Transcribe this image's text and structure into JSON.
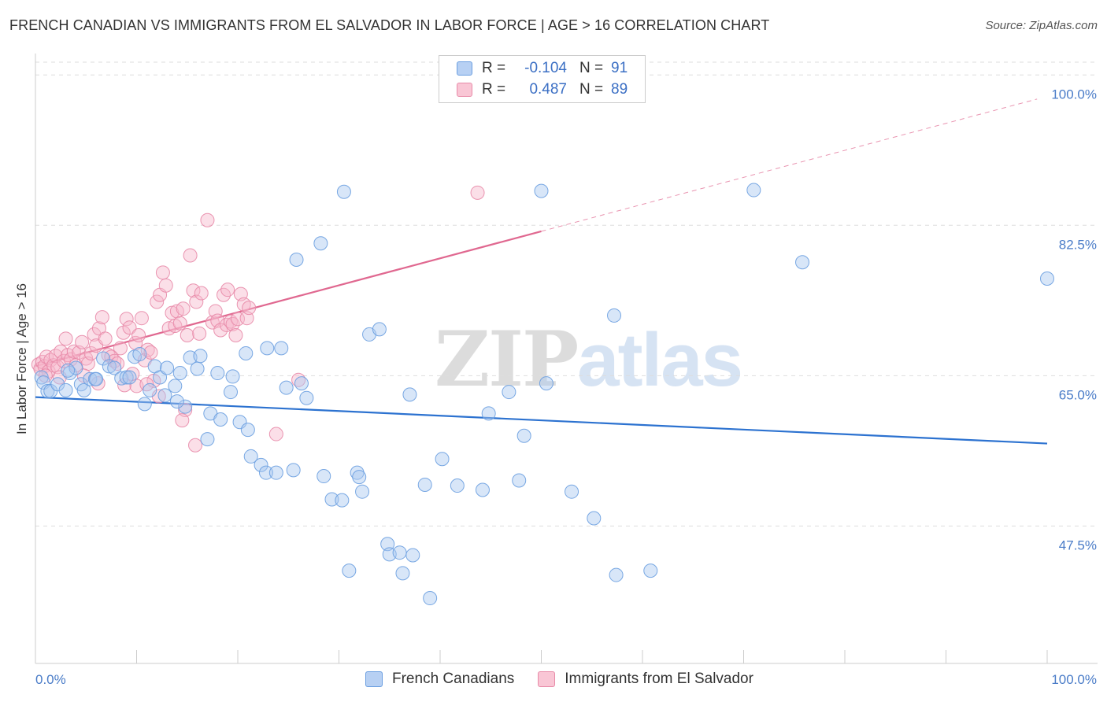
{
  "header": {
    "title": "FRENCH CANADIAN VS IMMIGRANTS FROM EL SALVADOR IN LABOR FORCE | AGE > 16 CORRELATION CHART",
    "source": "Source: ZipAtlas.com"
  },
  "watermark": {
    "zip": "ZIP",
    "atlas": "atlas"
  },
  "legend": {
    "rows": [
      {
        "r_label": "R =",
        "r_value": "-0.104",
        "n_label": "N =",
        "n_value": "91"
      },
      {
        "r_label": "R =",
        "r_value": "0.487",
        "n_label": "N =",
        "n_value": "89"
      }
    ]
  },
  "bottom_legend": {
    "series_a": "French Canadians",
    "series_b": "Immigrants from El Salvador"
  },
  "colors": {
    "blue_fill": "#a8c8f0",
    "blue_stroke": "#6a9ee0",
    "blue_line": "#2c72d0",
    "pink_fill": "#f7b9cc",
    "pink_stroke": "#e88aa8",
    "pink_line": "#e06890",
    "grid": "#dddddd",
    "axis_text": "#4a7cc8"
  },
  "chart_data": {
    "type": "scatter",
    "title": "FRENCH CANADIAN VS IMMIGRANTS FROM EL SALVADOR IN LABOR FORCE | AGE > 16 CORRELATION CHART",
    "xlabel": "",
    "ylabel": "In Labor Force | Age > 16",
    "x_tick_labels": [
      "0.0%",
      "100.0%"
    ],
    "y_tick_labels": [
      "47.5%",
      "65.0%",
      "82.5%",
      "100.0%"
    ],
    "y_ticks": [
      47.5,
      65.0,
      82.5,
      100.0
    ],
    "xlim": [
      0,
      100
    ],
    "ylim": [
      31.5,
      102.5
    ],
    "grid": true,
    "legend_position": "top-center",
    "series": [
      {
        "name": "French Canadians",
        "r": -0.104,
        "n": 91,
        "trend": {
          "x": [
            0,
            100
          ],
          "y": [
            62.5,
            57.1
          ]
        },
        "points": [
          [
            0.6,
            64.8
          ],
          [
            0.8,
            64.2
          ],
          [
            1.2,
            63.2
          ],
          [
            1.5,
            63.2
          ],
          [
            2.2,
            64.0
          ],
          [
            3.0,
            63.3
          ],
          [
            3.4,
            65.3
          ],
          [
            4.0,
            65.9
          ],
          [
            4.5,
            64.0
          ],
          [
            4.8,
            63.3
          ],
          [
            5.4,
            64.6
          ],
          [
            5.9,
            64.6
          ],
          [
            6.7,
            67.0
          ],
          [
            7.3,
            66.1
          ],
          [
            7.8,
            65.9
          ],
          [
            8.5,
            64.7
          ],
          [
            9.0,
            64.8
          ],
          [
            9.3,
            64.8
          ],
          [
            9.8,
            67.2
          ],
          [
            10.3,
            67.5
          ],
          [
            10.8,
            61.7
          ],
          [
            11.3,
            63.3
          ],
          [
            11.8,
            66.1
          ],
          [
            12.3,
            64.8
          ],
          [
            12.8,
            62.7
          ],
          [
            13.0,
            65.9
          ],
          [
            13.8,
            63.8
          ],
          [
            14.3,
            65.3
          ],
          [
            14.8,
            61.4
          ],
          [
            15.3,
            67.1
          ],
          [
            16.3,
            67.3
          ],
          [
            17.0,
            57.6
          ],
          [
            17.3,
            60.6
          ],
          [
            18.0,
            65.3
          ],
          [
            19.3,
            63.1
          ],
          [
            19.5,
            64.9
          ],
          [
            20.2,
            59.6
          ],
          [
            21.0,
            58.7
          ],
          [
            21.3,
            55.6
          ],
          [
            22.3,
            54.6
          ],
          [
            22.8,
            53.7
          ],
          [
            22.9,
            68.2
          ],
          [
            23.8,
            53.7
          ],
          [
            24.3,
            68.2
          ],
          [
            24.8,
            63.6
          ],
          [
            25.5,
            54.0
          ],
          [
            25.8,
            78.5
          ],
          [
            26.3,
            64.1
          ],
          [
            26.8,
            62.4
          ],
          [
            28.2,
            80.4
          ],
          [
            28.5,
            53.3
          ],
          [
            29.3,
            50.6
          ],
          [
            30.3,
            50.5
          ],
          [
            30.5,
            86.4
          ],
          [
            31.0,
            42.3
          ],
          [
            31.8,
            53.7
          ],
          [
            32.0,
            53.2
          ],
          [
            32.3,
            51.5
          ],
          [
            33.0,
            69.8
          ],
          [
            34.0,
            70.4
          ],
          [
            34.8,
            45.4
          ],
          [
            35.0,
            44.2
          ],
          [
            36.0,
            44.4
          ],
          [
            36.3,
            42.0
          ],
          [
            37.0,
            62.8
          ],
          [
            37.3,
            44.1
          ],
          [
            38.5,
            52.3
          ],
          [
            39.0,
            39.1
          ],
          [
            40.2,
            55.3
          ],
          [
            41.7,
            52.2
          ],
          [
            44.2,
            51.7
          ],
          [
            44.8,
            60.6
          ],
          [
            46.8,
            63.1
          ],
          [
            47.8,
            52.8
          ],
          [
            48.3,
            58.0
          ],
          [
            50.0,
            86.5
          ],
          [
            50.5,
            64.1
          ],
          [
            53.0,
            51.5
          ],
          [
            55.2,
            48.4
          ],
          [
            57.2,
            72.0
          ],
          [
            57.4,
            41.8
          ],
          [
            60.8,
            42.3
          ],
          [
            71.0,
            86.6
          ],
          [
            75.8,
            78.2
          ],
          [
            100.0,
            76.3
          ],
          [
            3.2,
            65.6
          ],
          [
            6.0,
            64.6
          ],
          [
            16.0,
            65.8
          ],
          [
            18.3,
            59.9
          ],
          [
            20.8,
            67.6
          ],
          [
            14.0,
            62.0
          ]
        ]
      },
      {
        "name": "Immigrants from El Salvador",
        "r": 0.487,
        "n": 89,
        "trend": {
          "x": [
            0,
            50
          ],
          "y": [
            66.1,
            81.8
          ]
        },
        "trend_extension": {
          "x": [
            50,
            99
          ],
          "y": [
            81.8,
            97.2
          ]
        },
        "points": [
          [
            0.3,
            66.3
          ],
          [
            0.5,
            65.8
          ],
          [
            0.7,
            66.6
          ],
          [
            0.9,
            66.1
          ],
          [
            1.1,
            67.2
          ],
          [
            1.3,
            65.5
          ],
          [
            1.5,
            66.8
          ],
          [
            1.8,
            66.2
          ],
          [
            2.0,
            67.3
          ],
          [
            2.2,
            66.0
          ],
          [
            2.5,
            67.8
          ],
          [
            2.8,
            66.7
          ],
          [
            3.0,
            69.3
          ],
          [
            3.2,
            67.4
          ],
          [
            3.5,
            66.9
          ],
          [
            3.8,
            67.8
          ],
          [
            4.0,
            66.2
          ],
          [
            4.3,
            67.7
          ],
          [
            4.6,
            68.9
          ],
          [
            5.0,
            67.0
          ],
          [
            5.2,
            66.4
          ],
          [
            5.5,
            67.6
          ],
          [
            5.8,
            69.8
          ],
          [
            6.0,
            68.5
          ],
          [
            6.3,
            70.5
          ],
          [
            6.6,
            71.8
          ],
          [
            6.9,
            69.3
          ],
          [
            7.2,
            67.4
          ],
          [
            7.5,
            67.2
          ],
          [
            7.8,
            66.7
          ],
          [
            8.1,
            66.4
          ],
          [
            8.4,
            68.2
          ],
          [
            8.7,
            70.0
          ],
          [
            9.0,
            71.6
          ],
          [
            9.3,
            70.6
          ],
          [
            9.6,
            65.2
          ],
          [
            9.9,
            68.8
          ],
          [
            10.2,
            69.7
          ],
          [
            10.5,
            71.7
          ],
          [
            10.8,
            66.8
          ],
          [
            11.1,
            68.0
          ],
          [
            11.4,
            67.7
          ],
          [
            11.7,
            64.4
          ],
          [
            12.0,
            73.6
          ],
          [
            12.3,
            74.4
          ],
          [
            12.6,
            77.0
          ],
          [
            12.9,
            75.5
          ],
          [
            13.2,
            70.5
          ],
          [
            13.5,
            72.3
          ],
          [
            13.8,
            70.8
          ],
          [
            14.0,
            72.5
          ],
          [
            14.3,
            71.1
          ],
          [
            14.6,
            72.8
          ],
          [
            14.8,
            61.0
          ],
          [
            15.0,
            69.7
          ],
          [
            15.3,
            79.0
          ],
          [
            15.6,
            74.9
          ],
          [
            15.9,
            73.6
          ],
          [
            16.2,
            69.9
          ],
          [
            16.4,
            74.6
          ],
          [
            17.0,
            83.1
          ],
          [
            17.5,
            71.2
          ],
          [
            17.8,
            72.5
          ],
          [
            18.0,
            71.4
          ],
          [
            18.3,
            70.3
          ],
          [
            18.6,
            74.4
          ],
          [
            18.9,
            70.9
          ],
          [
            19.0,
            75.0
          ],
          [
            19.3,
            71.3
          ],
          [
            19.5,
            71.0
          ],
          [
            19.8,
            69.7
          ],
          [
            20.0,
            71.6
          ],
          [
            20.3,
            74.5
          ],
          [
            20.6,
            73.3
          ],
          [
            20.9,
            71.7
          ],
          [
            21.1,
            72.9
          ],
          [
            1.0,
            65.0
          ],
          [
            2.4,
            64.8
          ],
          [
            4.8,
            65.0
          ],
          [
            8.8,
            63.9
          ],
          [
            10.0,
            63.8
          ],
          [
            12.2,
            62.6
          ],
          [
            14.5,
            59.8
          ],
          [
            15.8,
            56.9
          ],
          [
            23.8,
            58.2
          ],
          [
            26.0,
            64.5
          ],
          [
            43.7,
            86.3
          ],
          [
            6.2,
            64.1
          ],
          [
            11.0,
            64.0
          ]
        ]
      }
    ]
  }
}
